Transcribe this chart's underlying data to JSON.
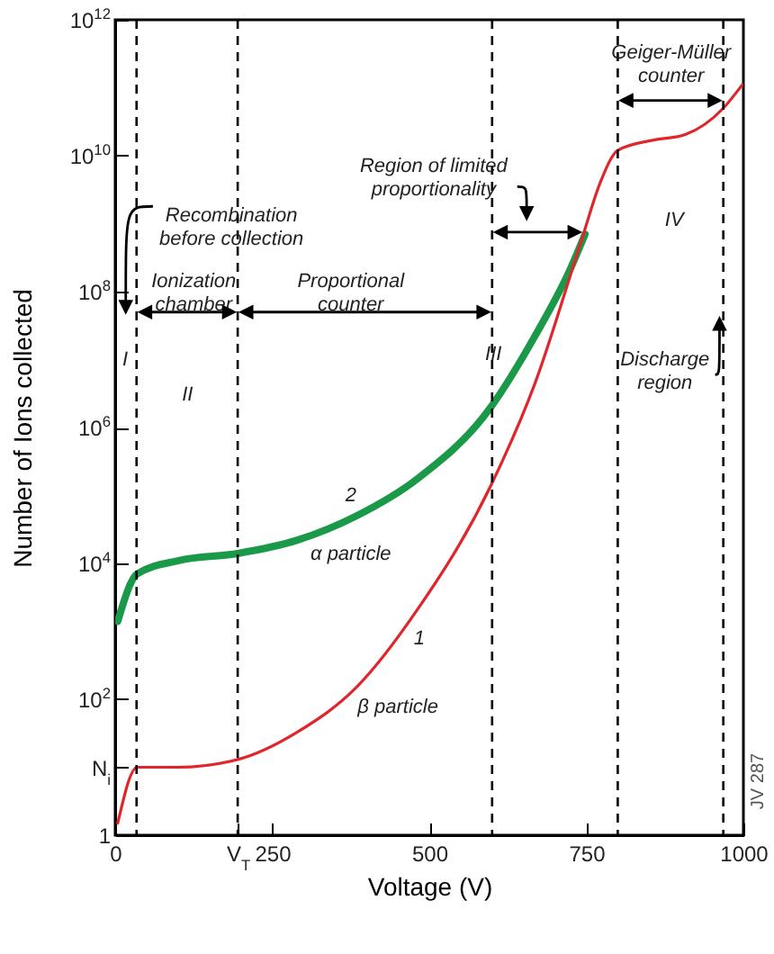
{
  "chart_data": {
    "type": "line",
    "xlabel": "Voltage (V)",
    "ylabel": "Number of Ions collected",
    "log": "y",
    "grid": false,
    "legend": false,
    "marker": "none",
    "line_style": "solid",
    "xlim": [
      0,
      1000
    ],
    "xticks": [
      0,
      {
        "value": 195,
        "label": "V$_{T}$"
      },
      250,
      500,
      750,
      1000
    ],
    "ylim": [
      1,
      1000000000000
    ],
    "yticks": [
      1,
      {
        "value": 10,
        "label": "N$_{i}$"
      },
      {
        "value": 100,
        "label": "10$^{2}$"
      },
      {
        "value": 10000,
        "label": "10$^{4}$"
      },
      {
        "value": 1000000,
        "label": "10$^{6}$"
      },
      {
        "value": 100000000,
        "label": "10$^{8}$"
      },
      {
        "value": 10000000000,
        "label": "10$^{10}$"
      },
      {
        "value": 1000000000000,
        "label": "10$^{12}$"
      }
    ],
    "series": [
      {
        "name": "α particle",
        "color": "#1a9a48",
        "x": [
          4,
          35,
          101,
          195,
          290,
          384,
          479,
          598,
          668,
          724,
          748
        ],
        "values": [
          1400,
          7000,
          11000,
          14000,
          22000,
          50000,
          170000,
          2000000,
          22000000,
          210000000,
          700000000
        ]
      },
      {
        "name": "β particle",
        "color": "#e0262b",
        "x": [
          4,
          35,
          100,
          195,
          290,
          384,
          478,
          598,
          668,
          743,
          772,
          800,
          857,
          904,
          968,
          998
        ],
        "values": [
          1.5,
          10,
          10,
          13,
          33,
          150,
          1900,
          140000,
          4400000,
          600000000,
          4000000000,
          12000000000,
          17000000000,
          20000000000,
          50000000000,
          110000000000
        ]
      }
    ],
    "ref_lines": [
      {
        "axis": "x",
        "value": 34,
        "line_style": "dashed"
      },
      {
        "axis": "x",
        "value": 195,
        "line_style": "dashed"
      },
      {
        "axis": "x",
        "value": 600,
        "line_style": "dashed"
      },
      {
        "axis": "x",
        "value": 800,
        "line_style": "dashed"
      },
      {
        "axis": "x",
        "value": 968,
        "line_style": "dashed"
      }
    ],
    "annotations": [
      "Recombination\nbefore collection",
      "Ionization\nchamber",
      "Proportional\ncounter",
      "Region of limited\nproportionality",
      "Geiger-Müller\ncounter",
      "Discharge\nregion",
      "I",
      "II",
      "III",
      "IV",
      "2",
      "1",
      "JV 287"
    ]
  }
}
